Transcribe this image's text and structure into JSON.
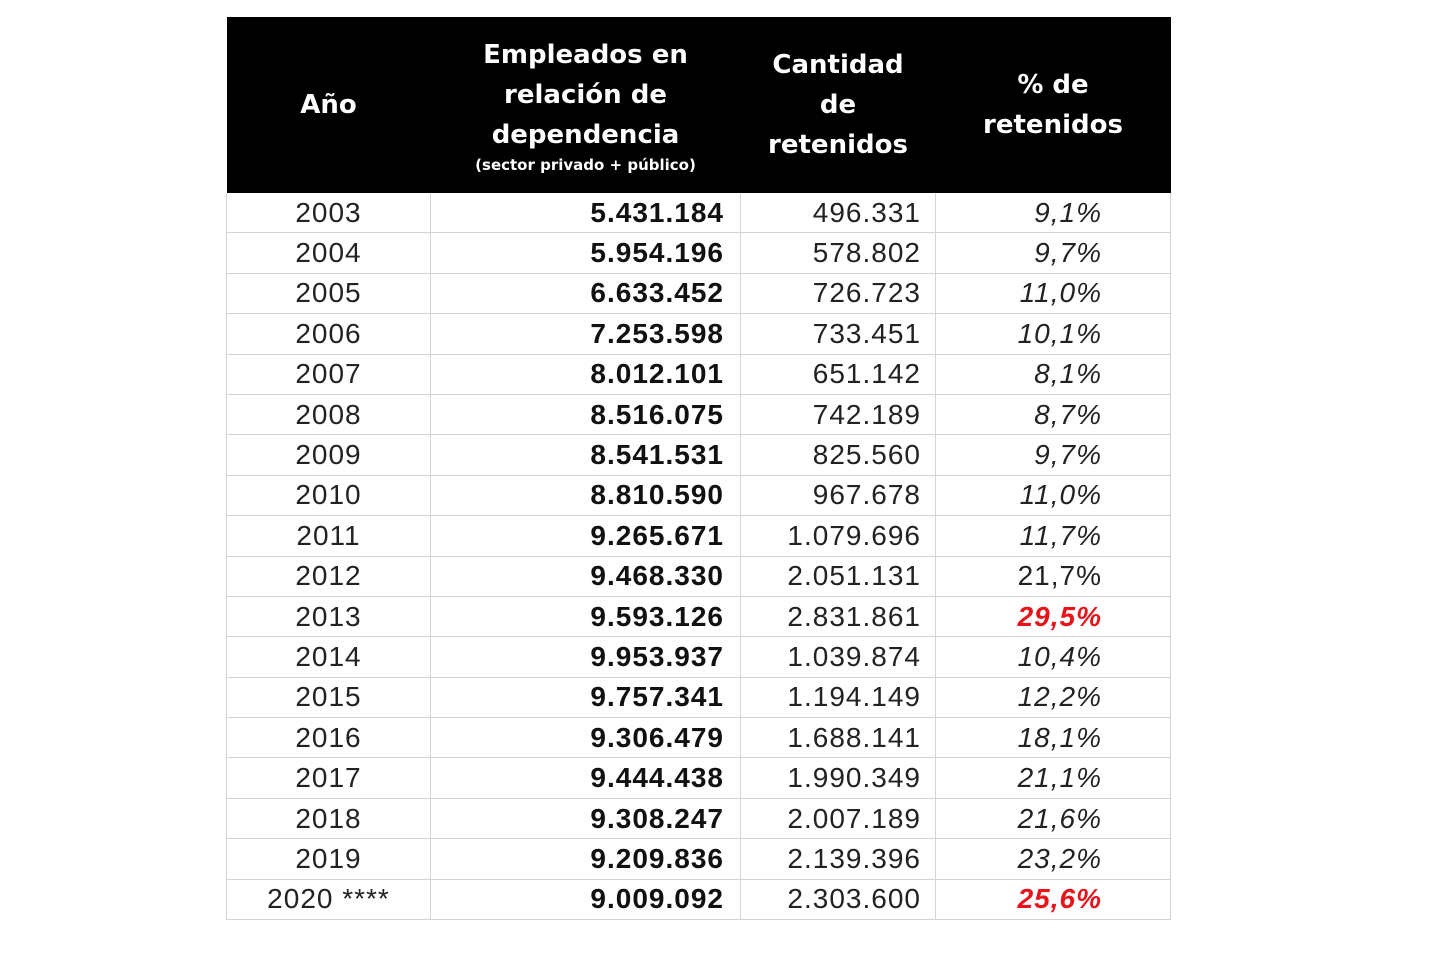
{
  "table": {
    "headers": {
      "year": "Año",
      "employees": "Empleados en relación de dependencia",
      "employees_sub": "(sector privado + público)",
      "retained": "Cantidad de retenidos",
      "percent": "% de retenidos"
    },
    "highlight_color": "#e8141b",
    "rows": [
      {
        "year": "2003",
        "employees": "5.431.184",
        "retained": "496.331",
        "percent": "9,1%",
        "style": "italic"
      },
      {
        "year": "2004",
        "employees": "5.954.196",
        "retained": "578.802",
        "percent": "9,7%",
        "style": "italic"
      },
      {
        "year": "2005",
        "employees": "6.633.452",
        "retained": "726.723",
        "percent": "11,0%",
        "style": "italic"
      },
      {
        "year": "2006",
        "employees": "7.253.598",
        "retained": "733.451",
        "percent": "10,1%",
        "style": "italic"
      },
      {
        "year": "2007",
        "employees": "8.012.101",
        "retained": "651.142",
        "percent": "8,1%",
        "style": "italic"
      },
      {
        "year": "2008",
        "employees": "8.516.075",
        "retained": "742.189",
        "percent": "8,7%",
        "style": "italic"
      },
      {
        "year": "2009",
        "employees": "8.541.531",
        "retained": "825.560",
        "percent": "9,7%",
        "style": "italic"
      },
      {
        "year": "2010",
        "employees": "8.810.590",
        "retained": "967.678",
        "percent": "11,0%",
        "style": "italic"
      },
      {
        "year": "2011",
        "employees": "9.265.671",
        "retained": "1.079.696",
        "percent": "11,7%",
        "style": "italic"
      },
      {
        "year": "2012",
        "employees": "9.468.330",
        "retained": "2.051.131",
        "percent": "21,7%",
        "style": "normal"
      },
      {
        "year": "2013",
        "employees": "9.593.126",
        "retained": "2.831.861",
        "percent": "29,5%",
        "style": "highlight"
      },
      {
        "year": "2014",
        "employees": "9.953.937",
        "retained": "1.039.874",
        "percent": "10,4%",
        "style": "italic"
      },
      {
        "year": "2015",
        "employees": "9.757.341",
        "retained": "1.194.149",
        "percent": "12,2%",
        "style": "italic"
      },
      {
        "year": "2016",
        "employees": "9.306.479",
        "retained": "1.688.141",
        "percent": "18,1%",
        "style": "italic"
      },
      {
        "year": "2017",
        "employees": "9.444.438",
        "retained": "1.990.349",
        "percent": "21,1%",
        "style": "italic"
      },
      {
        "year": "2018",
        "employees": "9.308.247",
        "retained": "2.007.189",
        "percent": "21,6%",
        "style": "italic"
      },
      {
        "year": "2019",
        "employees": "9.209.836",
        "retained": "2.139.396",
        "percent": "23,2%",
        "style": "italic"
      },
      {
        "year": "2020 ****",
        "employees": "9.009.092",
        "retained": "2.303.600",
        "percent": "25,6%",
        "style": "highlight"
      }
    ]
  }
}
